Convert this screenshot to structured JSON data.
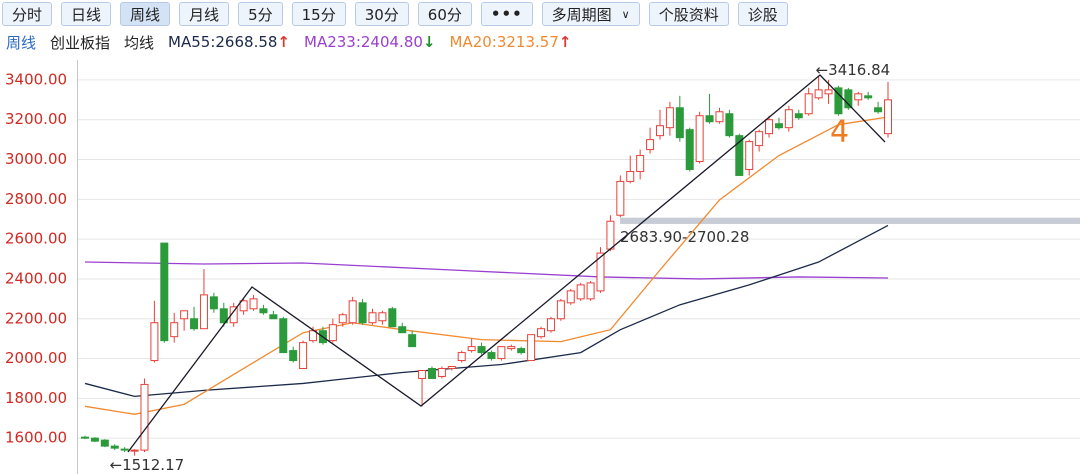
{
  "toolbar": {
    "buttons": [
      "分时",
      "日线",
      "周线",
      "月线",
      "5分",
      "15分",
      "30分",
      "60分",
      "多周期图",
      "个股资料",
      "诊股"
    ],
    "active": "周线"
  },
  "legend": [
    {
      "text": "周线",
      "color": "#2a6ac6"
    },
    {
      "text": "创业板指",
      "color": "#222222"
    },
    {
      "text": "均线",
      "color": "#222222"
    },
    {
      "text": "MA55:2668.58",
      "color": "#1c2a4a",
      "arrow": "↑",
      "arrow_color": "#e03a2f"
    },
    {
      "text": "MA233:2404.80",
      "color": "#9a3fd0",
      "arrow": "↓",
      "arrow_color": "#1f8a2e"
    },
    {
      "text": "MA20:3213.57",
      "color": "#f08a30",
      "arrow": "↑",
      "arrow_color": "#e03a2f"
    }
  ],
  "chart_data": {
    "type": "candlestick",
    "ylim": [
      1420,
      3500
    ],
    "yticks": [
      {
        "value": 1600,
        "label": "1600.00"
      },
      {
        "value": 1800,
        "label": "1800.00"
      },
      {
        "value": 2000,
        "label": "2000.00"
      },
      {
        "value": 2200,
        "label": "2200.00"
      },
      {
        "value": 2400,
        "label": "2400.00"
      },
      {
        "value": 2600,
        "label": "2600.00"
      },
      {
        "value": 2800,
        "label": "2800.00"
      },
      {
        "value": 3000,
        "label": "3000.00"
      },
      {
        "value": 3200,
        "label": "3200.00"
      },
      {
        "value": 3400,
        "label": "3400.00"
      }
    ],
    "grid": true,
    "up_color": "#e8413a",
    "down_color": "#2a9a3a",
    "tick_color": "#d02a22",
    "open": [
      1605,
      1600,
      1590,
      1560,
      1545,
      1535,
      1540,
      1990,
      2580,
      2110,
      2200,
      2200,
      2150,
      2310,
      2250,
      2180,
      2240,
      2250,
      2250,
      2220,
      2200,
      2040,
      1950,
      2090,
      2140,
      2090,
      2180,
      2180,
      2280,
      2180,
      2190,
      2250,
      2160,
      2120,
      1900,
      1950,
      1910,
      1950,
      1990,
      2040,
      2060,
      2030,
      2000,
      2050,
      2050,
      1990,
      2110,
      2140,
      2200,
      2280,
      2300,
      2300,
      2340,
      2550,
      2720,
      2890,
      2940,
      3050,
      3120,
      3160,
      3260,
      3150,
      2990,
      3220,
      3190,
      3230,
      3120,
      2950,
      3070,
      3130,
      3180,
      3160,
      3230,
      3230,
      3310,
      3330,
      3360,
      3350,
      3300,
      3320,
      3260,
      3130
    ],
    "high": [
      1612,
      1605,
      1595,
      1570,
      1555,
      1545,
      1900,
      2290,
      2580,
      2230,
      2240,
      2260,
      2450,
      2330,
      2280,
      2280,
      2300,
      2320,
      2270,
      2240,
      2210,
      2060,
      2090,
      2160,
      2160,
      2200,
      2230,
      2310,
      2300,
      2250,
      2240,
      2260,
      2180,
      2140,
      1940,
      1960,
      1960,
      1960,
      2040,
      2100,
      2080,
      2040,
      2060,
      2070,
      2060,
      2120,
      2160,
      2210,
      2300,
      2350,
      2380,
      2390,
      2560,
      2720,
      2920,
      3020,
      3050,
      3160,
      3250,
      3290,
      3320,
      3160,
      3240,
      3330,
      3260,
      3250,
      3130,
      3100,
      3150,
      3220,
      3210,
      3270,
      3250,
      3360,
      3416.84,
      3400,
      3370,
      3360,
      3340,
      3340,
      3290,
      3390
    ],
    "low": [
      1595,
      1580,
      1555,
      1540,
      1530,
      1512.17,
      1530,
      1980,
      2080,
      2080,
      2140,
      2140,
      2150,
      2230,
      2160,
      2160,
      2220,
      2240,
      2220,
      2200,
      2030,
      1980,
      1950,
      2080,
      2070,
      2080,
      2160,
      2170,
      2170,
      2170,
      2170,
      2160,
      2130,
      2060,
      1760,
      1900,
      1900,
      1940,
      1980,
      2030,
      2020,
      1990,
      1990,
      2040,
      2020,
      1990,
      2100,
      2130,
      2190,
      2270,
      2290,
      2290,
      2330,
      2540,
      2710,
      2880,
      2900,
      3030,
      3100,
      3120,
      3090,
      2940,
      2980,
      3180,
      3180,
      3110,
      2920,
      2920,
      3040,
      3110,
      3150,
      3140,
      3200,
      3220,
      3300,
      3280,
      3220,
      3250,
      3270,
      3300,
      3230,
      3110
    ],
    "close": [
      1600,
      1585,
      1560,
      1550,
      1540,
      1540,
      1870,
      2180,
      2090,
      2180,
      2240,
      2150,
      2320,
      2250,
      2180,
      2260,
      2290,
      2300,
      2230,
      2200,
      2030,
      1990,
      2080,
      2140,
      2080,
      2170,
      2220,
      2290,
      2180,
      2230,
      2230,
      2160,
      2130,
      2060,
      1940,
      1900,
      1950,
      1960,
      2030,
      2060,
      2030,
      2000,
      2060,
      2060,
      2030,
      2120,
      2150,
      2200,
      2290,
      2340,
      2370,
      2380,
      2530,
      2690,
      2890,
      2940,
      3020,
      3100,
      3170,
      3260,
      3110,
      2950,
      3220,
      3190,
      3240,
      3120,
      2920,
      3090,
      3140,
      3200,
      3160,
      3250,
      3210,
      3330,
      3350,
      3350,
      3230,
      3260,
      3330,
      3310,
      3240,
      3300
    ],
    "series": [
      {
        "name": "MA233",
        "color": "#9a3fd0",
        "x": [
          0,
          12,
          22,
          37,
          52,
          62,
          72,
          81
        ],
        "values": [
          2485,
          2475,
          2480,
          2445,
          2410,
          2400,
          2410,
          2404.8
        ]
      },
      {
        "name": "MA55",
        "color": "#1c2a4a",
        "x": [
          0,
          5,
          12,
          22,
          32,
          42,
          50,
          54,
          60,
          67,
          74,
          81
        ],
        "values": [
          1875,
          1810,
          1840,
          1875,
          1930,
          1970,
          2030,
          2145,
          2270,
          2370,
          2485,
          2668.58
        ]
      },
      {
        "name": "MA20",
        "color": "#f08a30",
        "x": [
          0,
          5,
          10,
          15,
          22,
          27,
          32,
          40,
          48,
          53,
          58,
          64,
          70,
          76,
          81
        ],
        "values": [
          1760,
          1720,
          1770,
          1920,
          2130,
          2180,
          2145,
          2095,
          2085,
          2145,
          2445,
          2797,
          3020,
          3175,
          3213.57
        ]
      }
    ],
    "max_label": "←3416.84",
    "min_label": "←1512.17",
    "band": {
      "low": 2683.9,
      "high": 2700.28,
      "label": "2683.90-2700.28"
    },
    "annotation": "4"
  }
}
